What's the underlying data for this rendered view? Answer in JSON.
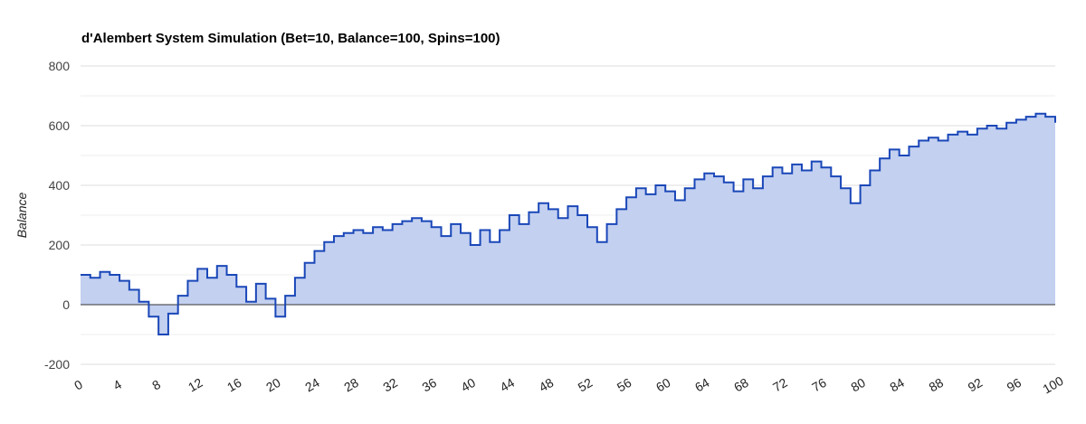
{
  "chart_data": {
    "type": "area",
    "title": "d'Alembert System Simulation (Bet=10, Balance=100, Spins=100)",
    "xlabel": "",
    "ylabel": "Balance",
    "xlim": [
      0,
      100
    ],
    "ylim": [
      -200,
      800
    ],
    "yticks": [
      -200,
      0,
      200,
      400,
      600,
      800
    ],
    "xticks": [
      0,
      4,
      8,
      12,
      16,
      20,
      24,
      28,
      32,
      36,
      40,
      44,
      48,
      52,
      56,
      60,
      64,
      68,
      72,
      76,
      80,
      84,
      88,
      92,
      96,
      100
    ],
    "step": true,
    "grid": true,
    "legend": "none",
    "colors": {
      "line": "#1a47b8",
      "fill": "#c3d0f0",
      "grid": "#dddddd",
      "baseline": "#333333"
    },
    "x": [
      0,
      1,
      2,
      3,
      4,
      5,
      6,
      7,
      8,
      9,
      10,
      11,
      12,
      13,
      14,
      15,
      16,
      17,
      18,
      19,
      20,
      21,
      22,
      23,
      24,
      25,
      26,
      27,
      28,
      29,
      30,
      31,
      32,
      33,
      34,
      35,
      36,
      37,
      38,
      39,
      40,
      41,
      42,
      43,
      44,
      45,
      46,
      47,
      48,
      49,
      50,
      51,
      52,
      53,
      54,
      55,
      56,
      57,
      58,
      59,
      60,
      61,
      62,
      63,
      64,
      65,
      66,
      67,
      68,
      69,
      70,
      71,
      72,
      73,
      74,
      75,
      76,
      77,
      78,
      79,
      80,
      81,
      82,
      83,
      84,
      85,
      86,
      87,
      88,
      89,
      90,
      91,
      92,
      93,
      94,
      95,
      96,
      97,
      98,
      99,
      100
    ],
    "values": [
      100,
      90,
      110,
      100,
      80,
      50,
      10,
      -40,
      -100,
      -30,
      30,
      80,
      120,
      90,
      130,
      100,
      60,
      10,
      70,
      20,
      -40,
      30,
      90,
      140,
      180,
      210,
      230,
      240,
      250,
      240,
      260,
      250,
      270,
      280,
      290,
      280,
      260,
      230,
      270,
      240,
      200,
      250,
      210,
      250,
      300,
      270,
      310,
      340,
      320,
      290,
      330,
      300,
      260,
      210,
      270,
      320,
      360,
      390,
      370,
      400,
      380,
      350,
      390,
      420,
      440,
      430,
      410,
      380,
      420,
      390,
      430,
      460,
      440,
      470,
      450,
      480,
      460,
      430,
      390,
      340,
      400,
      450,
      490,
      520,
      500,
      530,
      550,
      560,
      550,
      570,
      580,
      570,
      590,
      600,
      590,
      610,
      620,
      630,
      640,
      630,
      610
    ]
  }
}
